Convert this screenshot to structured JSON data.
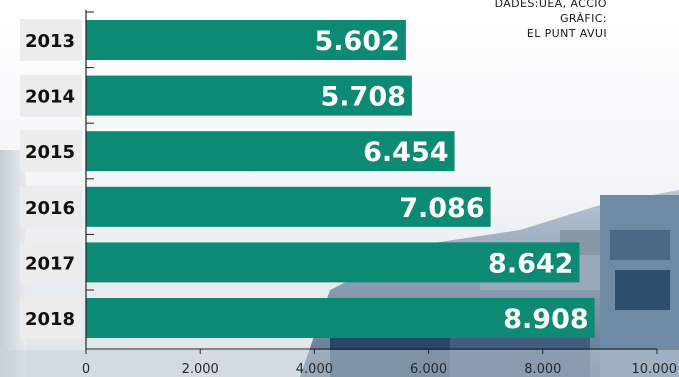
{
  "credit": {
    "line1": "DADES:UEA, ACCIÓ",
    "line2": "GRÀFIC:",
    "line3": "EL PUNT AVUI"
  },
  "colors": {
    "bar": "#0d8a73",
    "label_box": "#ececec",
    "tick_text": "#2a2a2a"
  },
  "chart_data": {
    "type": "bar",
    "orientation": "horizontal",
    "title": "",
    "xlabel": "",
    "ylabel": "",
    "categories": [
      "2013",
      "2014",
      "2015",
      "2016",
      "2017",
      "2018"
    ],
    "values": [
      5602,
      5708,
      6454,
      7086,
      8642,
      8908
    ],
    "value_labels": [
      "5.602",
      "5.708",
      "6.454",
      "7.086",
      "8.642",
      "8.908"
    ],
    "xlim": [
      0,
      10000
    ],
    "x_ticks": [
      0,
      2000,
      4000,
      6000,
      8000,
      10000
    ],
    "x_tick_labels": [
      "0",
      "2.000",
      "4.000",
      "6.000",
      "8.000",
      "10.000"
    ],
    "grid": false,
    "legend": "none"
  }
}
